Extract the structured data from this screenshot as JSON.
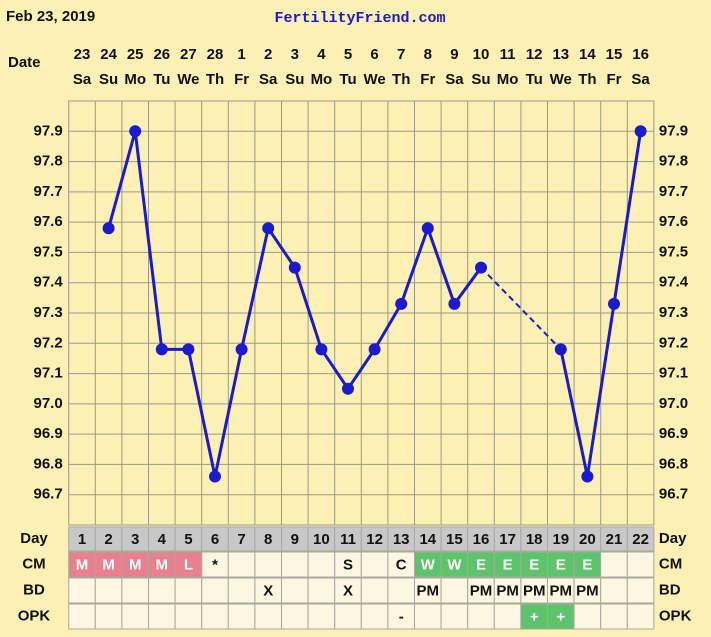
{
  "header": {
    "date": "Feb 23, 2019",
    "site": "FertilityFriend.com"
  },
  "chart_data": {
    "type": "line",
    "x_label": "Date",
    "categories": [
      "23",
      "24",
      "25",
      "26",
      "27",
      "28",
      "1",
      "2",
      "3",
      "4",
      "5",
      "6",
      "7",
      "8",
      "9",
      "10",
      "11",
      "12",
      "13",
      "14",
      "15",
      "16"
    ],
    "weekdays": [
      "Sa",
      "Su",
      "Mo",
      "Tu",
      "We",
      "Th",
      "Fr",
      "Sa",
      "Su",
      "Mo",
      "Tu",
      "We",
      "Th",
      "Fr",
      "Sa",
      "Su",
      "Mo",
      "Tu",
      "We",
      "Th",
      "Fr",
      "Sa"
    ],
    "values": [
      null,
      97.58,
      97.9,
      97.18,
      97.18,
      96.76,
      97.18,
      97.58,
      97.45,
      97.18,
      97.05,
      97.18,
      97.33,
      97.58,
      97.33,
      97.45,
      null,
      null,
      97.18,
      96.76,
      97.33,
      97.9
    ],
    "color": "#1a1ad0",
    "ylim": [
      96.6,
      98.0
    ],
    "yticks": [
      {
        "value": 97.9,
        "label": "97.9"
      },
      {
        "value": 97.8,
        "label": "97.8"
      },
      {
        "value": 97.7,
        "label": "97.7"
      },
      {
        "value": 97.6,
        "label": "97.6"
      },
      {
        "value": 97.5,
        "label": "97.5"
      },
      {
        "value": 97.4,
        "label": "97.4"
      },
      {
        "value": 97.3,
        "label": "97.3"
      },
      {
        "value": 97.2,
        "label": "97.2"
      },
      {
        "value": 97.1,
        "label": "97.1"
      },
      {
        "value": 97,
        "label": "97.0"
      },
      {
        "value": 96.9,
        "label": "96.9"
      },
      {
        "value": 96.8,
        "label": "96.8"
      },
      {
        "value": 96.7,
        "label": "96.7"
      }
    ],
    "grid": true
  },
  "table": {
    "colors": {
      "M": "#ea7f8e",
      "L": "#ea7f8e",
      "W": "#5dc46b",
      "E": "#5dc46b",
      "+": "#5dc46b"
    },
    "rows": [
      {
        "label": "Day",
        "cells": [
          1,
          2,
          3,
          4,
          5,
          6,
          7,
          8,
          9,
          10,
          11,
          12,
          13,
          14,
          15,
          16,
          17,
          18,
          19,
          20,
          21,
          22
        ]
      },
      {
        "label": "CM",
        "cells": [
          "M",
          "M",
          "M",
          "M",
          "L",
          "*",
          null,
          null,
          null,
          null,
          "S",
          null,
          "C",
          "W",
          "W",
          "E",
          "E",
          "E",
          "E",
          "E",
          null,
          null
        ]
      },
      {
        "label": "BD",
        "cells": [
          null,
          null,
          null,
          null,
          null,
          null,
          null,
          "X",
          null,
          null,
          "X",
          null,
          null,
          "PM",
          null,
          "PM",
          "PM",
          "PM",
          "PM",
          "PM",
          null,
          null
        ]
      },
      {
        "label": "OPK",
        "cells": [
          null,
          null,
          null,
          null,
          null,
          null,
          null,
          null,
          null,
          null,
          null,
          null,
          "-",
          null,
          null,
          null,
          null,
          "+",
          "+",
          null,
          null,
          null
        ]
      }
    ]
  }
}
